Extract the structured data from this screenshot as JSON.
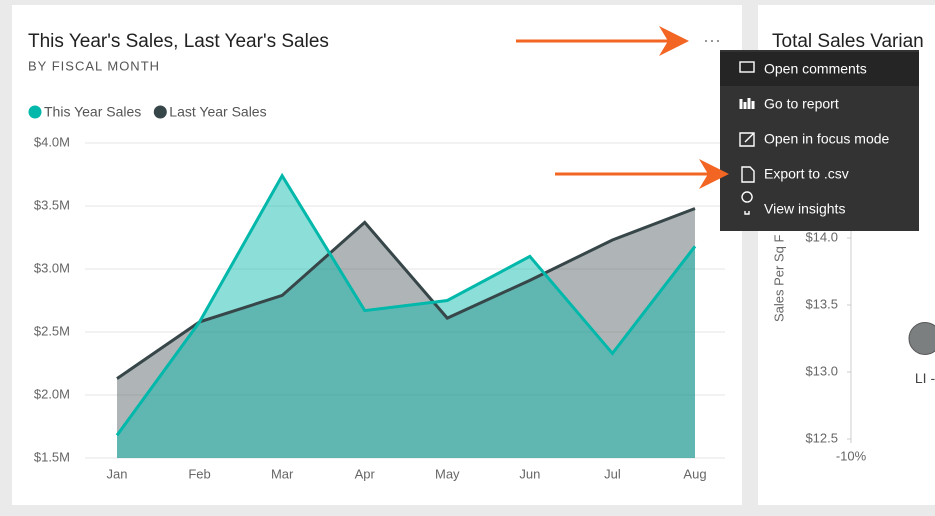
{
  "chart_data": [
    {
      "type": "area",
      "title": "This Year's Sales, Last Year's Sales",
      "subtitle": "BY FISCAL MONTH",
      "categories": [
        "Jan",
        "Feb",
        "Mar",
        "Apr",
        "May",
        "Jun",
        "Jul",
        "Aug"
      ],
      "series": [
        {
          "name": "This Year Sales",
          "color": "#01b8aa",
          "values": [
            1.68,
            2.58,
            3.74,
            2.67,
            2.75,
            3.1,
            2.33,
            3.18
          ]
        },
        {
          "name": "Last Year Sales",
          "color": "#374649",
          "values": [
            2.13,
            2.58,
            2.79,
            3.37,
            2.61,
            2.91,
            3.23,
            3.48
          ]
        }
      ],
      "ylim": [
        1.5,
        4.0
      ],
      "yticks": [
        {
          "value": 1.5,
          "label": "$1.5M"
        },
        {
          "value": 2.0,
          "label": "$2.0M"
        },
        {
          "value": 2.5,
          "label": "$2.5M"
        },
        {
          "value": 3.0,
          "label": "$3.0M"
        },
        {
          "value": 3.5,
          "label": "$3.5M"
        },
        {
          "value": 4.0,
          "label": "$4.0M"
        }
      ],
      "grid": true,
      "legend": "top-left"
    },
    {
      "type": "scatter",
      "title": "Total Sales Varian",
      "y_label": "Sales Per Sq F",
      "x": [
        -6.3
      ],
      "values": [
        13.25
      ],
      "point_labels": [
        "LI -"
      ],
      "color": "#7b7f80",
      "xlim": [
        -10,
        0
      ],
      "xticks": [
        {
          "value": -10,
          "label": "-10%"
        }
      ],
      "ylim": [
        12.5,
        14.25
      ],
      "yticks": [
        {
          "value": 12.5,
          "label": "$12.5"
        },
        {
          "value": 13.0,
          "label": "$13.0"
        },
        {
          "value": 13.5,
          "label": "$13.5"
        },
        {
          "value": 14.0,
          "label": "$14.0"
        }
      ]
    }
  ],
  "menu": {
    "items": [
      "Open comments",
      "Go to report",
      "Open in focus mode",
      "Export to .csv",
      "View insights"
    ]
  }
}
